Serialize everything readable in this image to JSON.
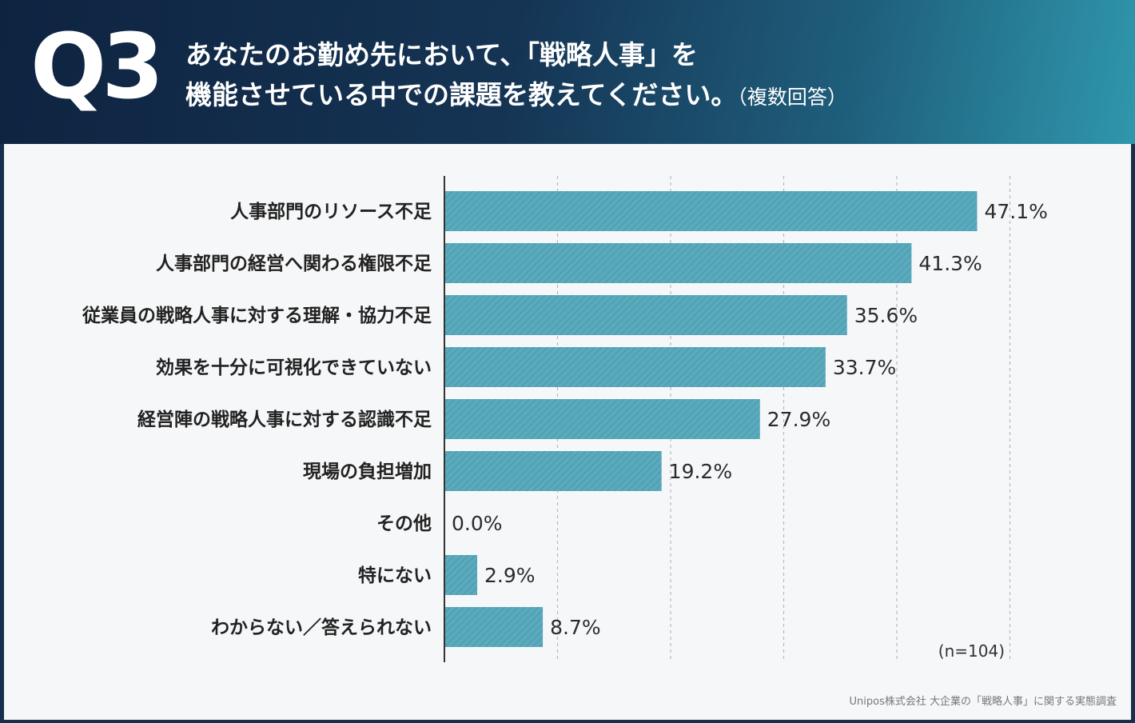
{
  "header": {
    "q_number": "Q3",
    "question_line1": "あなたのお勤め先において、「戦略人事」を",
    "question_line2": "機能させている中での課題を教えてください。",
    "question_note": "（複数回答）"
  },
  "footer": {
    "sample_size": "(n=104)",
    "source": "Unipos株式会社 大企業の「戦略人事」に関する実態調査"
  },
  "colors": {
    "bar": "#5aaabd",
    "bar_stripe": "#4d96a8",
    "axis": "#333333",
    "grid": "#b9b9b9"
  },
  "chart_data": {
    "type": "bar",
    "orientation": "horizontal",
    "categories": [
      "人事部門のリソース不足",
      "人事部門の経営へ関わる権限不足",
      "従業員の戦略人事に対する理解・協力不足",
      "効果を十分に可視化できていない",
      "経営陣の戦略人事に対する認識不足",
      "現場の負担増加",
      "その他",
      "特にない",
      "わからない／答えられない"
    ],
    "values": [
      47.1,
      41.3,
      35.6,
      33.7,
      27.9,
      19.2,
      0.0,
      2.9,
      8.7
    ],
    "value_labels": [
      "47.1%",
      "41.3%",
      "35.6%",
      "33.7%",
      "27.9%",
      "19.2%",
      "0.0%",
      "2.9%",
      "8.7%"
    ],
    "unit": "%",
    "xlim": [
      0,
      50
    ],
    "grid_step": 10,
    "grid": true,
    "title": "",
    "xlabel": "",
    "ylabel": ""
  }
}
